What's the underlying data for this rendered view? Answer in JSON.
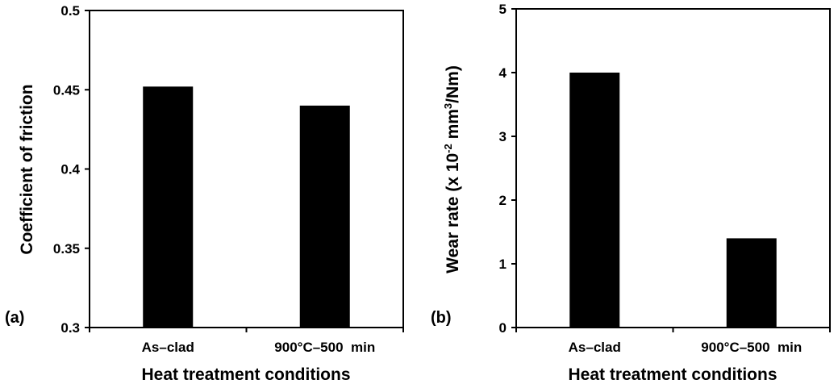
{
  "chart_data": [
    {
      "type": "bar",
      "panel_label": "(a)",
      "categories": [
        "As–clad",
        "900°C–500  min"
      ],
      "values": [
        0.452,
        0.44
      ],
      "xlabel": "Heat treatment conditions",
      "ylabel": "Coefficient of friction",
      "ylim": [
        0.3,
        0.5
      ],
      "yticks": [
        0.3,
        0.35,
        0.4,
        0.45,
        0.5
      ],
      "ytick_labels": [
        "0.3",
        "0.35",
        "0.4",
        "0.45",
        "0.5"
      ],
      "bar_color": "#000000",
      "grid": false
    },
    {
      "type": "bar",
      "panel_label": "(b)",
      "categories": [
        "As–clad",
        "900°C–500  min"
      ],
      "values": [
        4.0,
        1.4
      ],
      "xlabel": "Heat treatment conditions",
      "ylabel": {
        "prefix": "Wear rate (x 10",
        "sup1": "-2",
        "mid": " mm",
        "sup2": "3",
        "suffix": "/Nm)"
      },
      "ylim": [
        0,
        5
      ],
      "yticks": [
        0,
        1,
        2,
        3,
        4,
        5
      ],
      "ytick_labels": [
        "0",
        "1",
        "2",
        "3",
        "4",
        "5"
      ],
      "bar_color": "#000000",
      "grid": false
    }
  ]
}
